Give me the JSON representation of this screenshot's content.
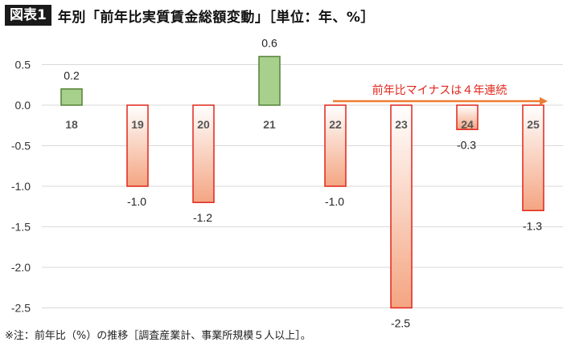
{
  "header": {
    "badge": "図表1",
    "title": "年別「前年比実質賃金総額変動」［単位：年、%］"
  },
  "footnote": "※注：前年比（%）の推移［調査産業計、事業所規模５人以上］。",
  "chart_data": {
    "type": "bar",
    "categories": [
      "18",
      "19",
      "20",
      "21",
      "22",
      "23",
      "24",
      "25"
    ],
    "values": [
      0.2,
      -1.0,
      -1.2,
      0.6,
      -1.0,
      -2.5,
      -0.3,
      -1.3
    ],
    "value_labels": [
      "0.2",
      "-1.0",
      "-1.2",
      "0.6",
      "-1.0",
      "-2.5",
      "-0.3",
      "-1.3"
    ],
    "yticks": [
      "0.5",
      "0.0",
      "-0.5",
      "-1.0",
      "-1.5",
      "-2.0",
      "-2.5"
    ],
    "ytick_values": [
      0.5,
      0.0,
      -0.5,
      -1.0,
      -1.5,
      -2.0,
      -2.5
    ],
    "ylim": [
      -2.5,
      0.5
    ],
    "grid": true,
    "annotation": {
      "text": "前年比マイナスは４年連続",
      "from_category": "22",
      "to_category": "25"
    },
    "colors": {
      "positive_fill": "#a8d08d",
      "positive_stroke": "#548235",
      "negative_stroke": "#e0261b",
      "negative_fill_top": "#ffffff",
      "negative_fill_bottom": "#f4a582",
      "arrow": "#ed7d31",
      "annotation_text": "#e0261b",
      "grid": "#d9d9d9"
    }
  }
}
